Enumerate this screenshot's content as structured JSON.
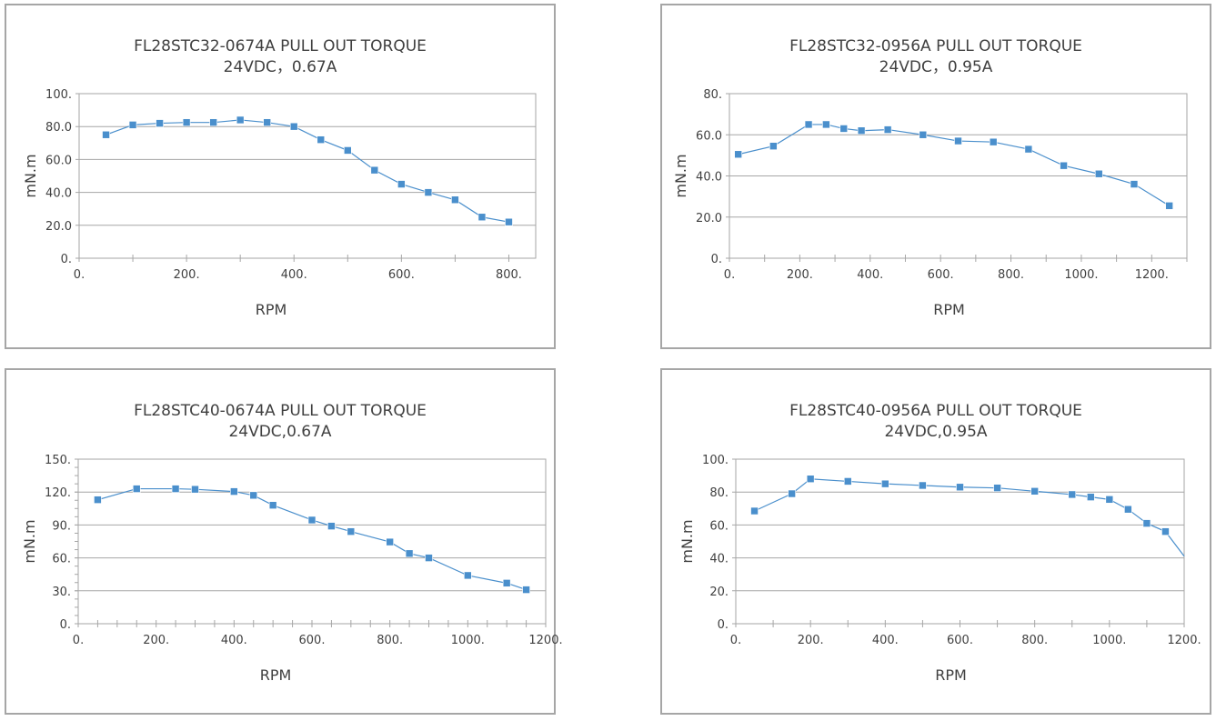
{
  "colors": {
    "series": "#4a8fcc",
    "grid": "#a6a6a6",
    "text": "#404040"
  },
  "chart_data": [
    {
      "type": "line",
      "title": "FL28STC32-0674A  PULL OUT TORQUE",
      "subtitle": "24VDC，0.67A",
      "xlabel": "RPM",
      "ylabel": "mN.m",
      "xlim": [
        0,
        850
      ],
      "ylim": [
        0,
        100
      ],
      "grid": "horizontal",
      "xticks": [
        {
          "v": 0,
          "label": "0."
        },
        {
          "v": 200,
          "label": "200."
        },
        {
          "v": 400,
          "label": "400."
        },
        {
          "v": 600,
          "label": "600."
        },
        {
          "v": 800,
          "label": "800."
        }
      ],
      "yticks": [
        {
          "v": 0,
          "label": "0."
        },
        {
          "v": 20,
          "label": "20.0"
        },
        {
          "v": 40,
          "label": "40.0"
        },
        {
          "v": 60,
          "label": "60.0"
        },
        {
          "v": 80,
          "label": "80.0"
        },
        {
          "v": 100,
          "label": "100."
        }
      ],
      "x": [
        50,
        100,
        150,
        200,
        250,
        300,
        350,
        400,
        450,
        500,
        550,
        600,
        650,
        700,
        750,
        800
      ],
      "y": [
        75,
        81,
        82,
        82.5,
        82.5,
        84,
        82.5,
        80,
        72,
        65.5,
        53.5,
        45,
        40,
        35.5,
        25,
        22
      ]
    },
    {
      "type": "line",
      "title": "FL28STC32-0956A  PULL OUT TORQUE",
      "subtitle": "24VDC，0.95A",
      "xlabel": "RPM",
      "ylabel": "mN.m",
      "xlim": [
        0,
        1300
      ],
      "ylim": [
        0,
        80
      ],
      "grid": "horizontal",
      "xticks": [
        {
          "v": 0,
          "label": "0."
        },
        {
          "v": 200,
          "label": "200."
        },
        {
          "v": 400,
          "label": "400."
        },
        {
          "v": 600,
          "label": "600."
        },
        {
          "v": 800,
          "label": "800."
        },
        {
          "v": 1000,
          "label": "1000."
        },
        {
          "v": 1200,
          "label": "1200."
        }
      ],
      "yticks": [
        {
          "v": 0,
          "label": "0."
        },
        {
          "v": 20,
          "label": "20.0"
        },
        {
          "v": 40,
          "label": "40.0"
        },
        {
          "v": 60,
          "label": "60.0"
        },
        {
          "v": 80,
          "label": "80."
        }
      ],
      "x": [
        25,
        125,
        225,
        275,
        325,
        375,
        450,
        550,
        650,
        750,
        850,
        950,
        1050,
        1150,
        1250
      ],
      "y": [
        50.5,
        54.5,
        65,
        65,
        63,
        62,
        62.5,
        60,
        57,
        56.5,
        53,
        45,
        41,
        36,
        25.5
      ]
    },
    {
      "type": "line",
      "title": "FL28STC40-0674A PULL OUT TORQUE",
      "subtitle": "24VDC,0.67A",
      "xlabel": "RPM",
      "ylabel": "mN.m",
      "xlim": [
        0,
        1200
      ],
      "ylim": [
        0,
        150
      ],
      "grid": "horizontal",
      "xticks": [
        {
          "v": 0,
          "label": "0."
        },
        {
          "v": 200,
          "label": "200."
        },
        {
          "v": 400,
          "label": "400."
        },
        {
          "v": 600,
          "label": "600."
        },
        {
          "v": 800,
          "label": "800."
        },
        {
          "v": 1000,
          "label": "1000."
        },
        {
          "v": 1200,
          "label": "1200."
        }
      ],
      "yticks": [
        {
          "v": 0,
          "label": "0."
        },
        {
          "v": 30,
          "label": "30."
        },
        {
          "v": 60,
          "label": "60."
        },
        {
          "v": 90,
          "label": "90."
        },
        {
          "v": 120,
          "label": "120."
        },
        {
          "v": 150,
          "label": "150."
        }
      ],
      "x": [
        50,
        150,
        250,
        300,
        400,
        450,
        500,
        600,
        650,
        700,
        800,
        850,
        900,
        1000,
        1100,
        1150
      ],
      "y": [
        113,
        123,
        123,
        122.5,
        120.5,
        117,
        108,
        94.5,
        89,
        84,
        74.5,
        64,
        60,
        44,
        37,
        31
      ]
    },
    {
      "type": "line",
      "title": "FL28STC40-0956A PULL OUT TORQUE",
      "subtitle": "24VDC,0.95A",
      "xlabel": "RPM",
      "ylabel": "mN.m",
      "xlim": [
        0,
        1200
      ],
      "ylim": [
        0,
        100
      ],
      "grid": "horizontal",
      "xticks": [
        {
          "v": 0,
          "label": "0."
        },
        {
          "v": 200,
          "label": "200."
        },
        {
          "v": 400,
          "label": "400."
        },
        {
          "v": 600,
          "label": "600."
        },
        {
          "v": 800,
          "label": "800."
        },
        {
          "v": 1000,
          "label": "1000."
        },
        {
          "v": 1200,
          "label": "1200."
        }
      ],
      "yticks": [
        {
          "v": 0,
          "label": "0."
        },
        {
          "v": 20,
          "label": "20."
        },
        {
          "v": 40,
          "label": "40."
        },
        {
          "v": 60,
          "label": "60."
        },
        {
          "v": 80,
          "label": "80."
        },
        {
          "v": 100,
          "label": "100."
        }
      ],
      "x": [
        50,
        150,
        200,
        300,
        400,
        500,
        600,
        700,
        800,
        900,
        950,
        1000,
        1050,
        1100,
        1150,
        1200
      ],
      "y": [
        68.5,
        79,
        88,
        86.5,
        85,
        84,
        83,
        82.5,
        80.5,
        78.5,
        77,
        75.5,
        69.5,
        61,
        56,
        41
      ]
    }
  ]
}
